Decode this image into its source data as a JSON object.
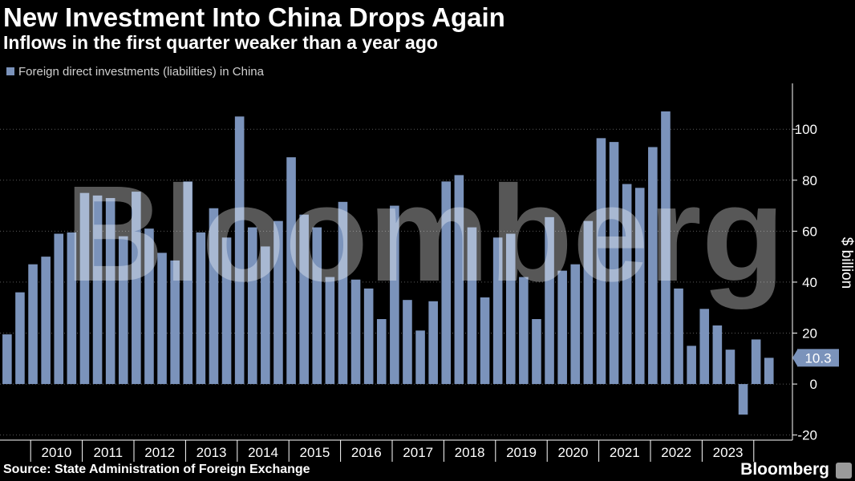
{
  "header": {
    "title": "New Investment Into China Drops Again",
    "subtitle": "Inflows in the first quarter weaker than a year ago"
  },
  "footer": {
    "source": "Source: State Administration of Foreign Exchange",
    "brand": "Bloomberg",
    "brand_icon": "bloomberg-chart-icon"
  },
  "watermark": "Bloomberg",
  "chart_data": {
    "type": "bar",
    "title": "New Investment Into China Drops Again",
    "subtitle": "Inflows in the first quarter weaker than a year ago",
    "series": [
      {
        "name": "Foreign direct investments (liabilities) in China",
        "color": "#7b93bb",
        "values": [
          19.5,
          36,
          47,
          50,
          59,
          59.5,
          75,
          74,
          73,
          58,
          75.5,
          61,
          51.5,
          48.5,
          79.5,
          59.5,
          69,
          57.5,
          105,
          61.5,
          54,
          64,
          89,
          66.5,
          61.5,
          42,
          71.5,
          41,
          37.5,
          25.5,
          70,
          33,
          21,
          32.5,
          79.5,
          82,
          61.5,
          34,
          57.5,
          59,
          42,
          25.5,
          65.5,
          44.5,
          47,
          64,
          96.5,
          95,
          78.5,
          77,
          93,
          107,
          37.5,
          15,
          29.5,
          23,
          13.5,
          -12,
          17.5,
          10.3
        ]
      }
    ],
    "x_labels": [
      "2010",
      "2011",
      "2012",
      "2013",
      "2014",
      "2015",
      "2016",
      "2017",
      "2018",
      "2019",
      "2020",
      "2021",
      "2022",
      "2023"
    ],
    "ylabel": "$ billion",
    "y_ticks": [
      -20,
      0,
      20,
      40,
      60,
      80,
      100
    ],
    "ylim": [
      -22,
      118
    ],
    "last_value_label": "10.3",
    "grid": true
  }
}
